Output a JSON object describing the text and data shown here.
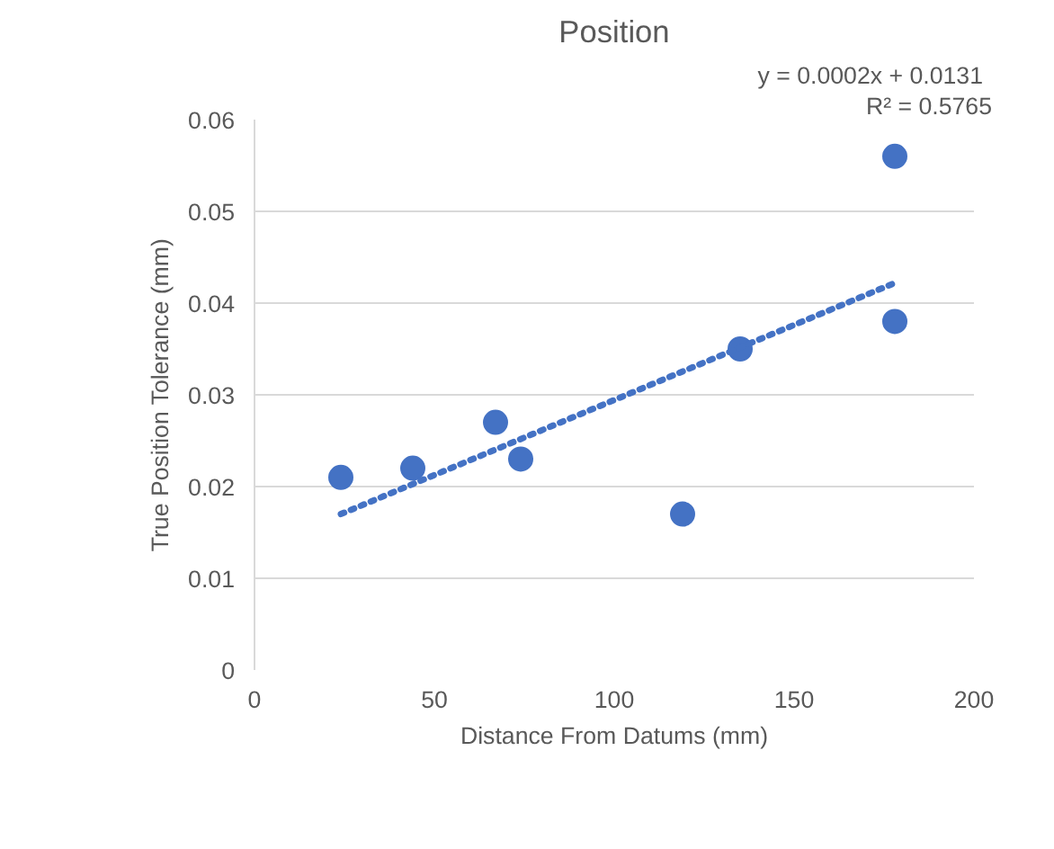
{
  "chart_data": {
    "type": "scatter",
    "title": "Position",
    "xlabel": "Distance From Datums (mm)",
    "ylabel": "True Position Tolerance (mm)",
    "annotations": [
      "y = 0.0002x + 0.0131",
      "R² = 0.5765"
    ],
    "xlim": [
      0,
      200
    ],
    "xticks": [
      0,
      50,
      100,
      150,
      200
    ],
    "ylim": [
      0,
      0.06
    ],
    "yticks": [
      0,
      0.01,
      0.02,
      0.03,
      0.04,
      0.05,
      0.06
    ],
    "grid": "y",
    "series": [
      {
        "marker": "circle",
        "color": "#4472c4",
        "x": [
          24,
          44,
          67,
          74,
          119,
          135,
          178,
          178
        ],
        "values": [
          0.021,
          0.022,
          0.027,
          0.023,
          0.017,
          0.035,
          0.056,
          0.038
        ]
      },
      {
        "type": "line",
        "color": "#4472c4",
        "line_style": "dotted",
        "x": [
          24,
          178
        ],
        "values": [
          0.017,
          0.0422
        ]
      }
    ]
  }
}
